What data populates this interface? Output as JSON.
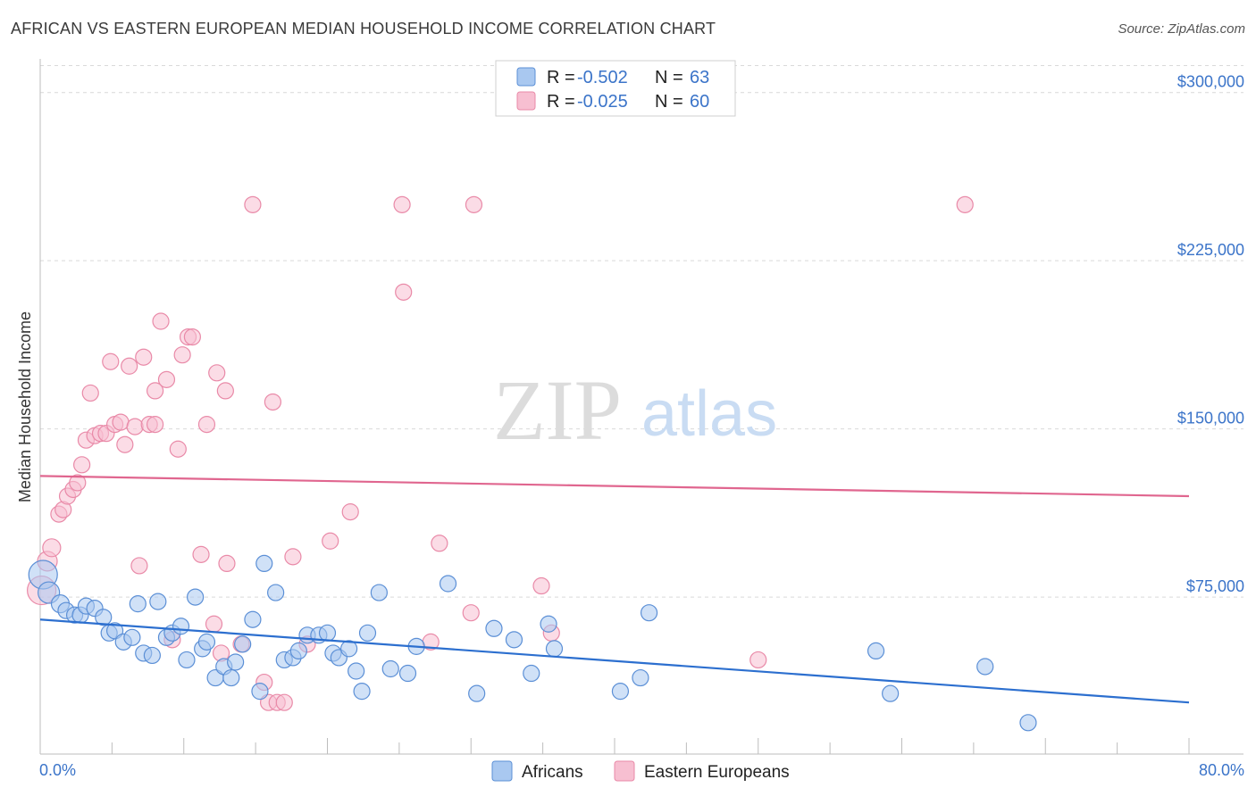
{
  "title": "AFRICAN VS EASTERN EUROPEAN MEDIAN HOUSEHOLD INCOME CORRELATION CHART",
  "source": "Source: ZipAtlas.com",
  "watermark": {
    "zip": "ZIP",
    "atlas": "atlas"
  },
  "colors": {
    "africans_fill": "#a9c8f0",
    "africans_stroke": "#5b8fd6",
    "africans_line": "#2c6fcf",
    "eastern_fill": "#f7bfd1",
    "eastern_stroke": "#e98aa8",
    "eastern_line": "#e0668f",
    "grid": "#d9d9d9",
    "axis_text": "#3b74c9"
  },
  "legend": {
    "africans": {
      "r_label": "R =",
      "r_value": "-0.502",
      "n_label": "N =",
      "n_value": "63"
    },
    "eastern": {
      "r_label": "R =",
      "r_value": "-0.025",
      "n_label": "N =",
      "n_value": "60"
    }
  },
  "chart_data": {
    "type": "scatter",
    "xlabel": "",
    "ylabel": "Median Household Income",
    "xlim": [
      0,
      80
    ],
    "ylim": [
      5000,
      315000
    ],
    "x_tick_labels": {
      "min": "0.0%",
      "max": "80.0%"
    },
    "y_ticks": [
      {
        "value": 75000,
        "label": "$75,000"
      },
      {
        "value": 150000,
        "label": "$150,000"
      },
      {
        "value": 225000,
        "label": "$225,000"
      },
      {
        "value": 300000,
        "label": "$300,000"
      }
    ],
    "grid": true,
    "legend_position": "top-center",
    "series": [
      {
        "name": "Africans",
        "trend": {
          "x": [
            0,
            80
          ],
          "y": [
            65000,
            28000
          ]
        },
        "points": [
          [
            0.2,
            85000,
            16
          ],
          [
            0.6,
            77000,
            12
          ],
          [
            1.4,
            72000,
            10
          ],
          [
            1.8,
            69000,
            9
          ],
          [
            2.4,
            67000,
            9
          ],
          [
            2.8,
            67000,
            9
          ],
          [
            3.2,
            71000,
            9
          ],
          [
            3.8,
            70000,
            9
          ],
          [
            4.4,
            66000,
            9
          ],
          [
            4.8,
            59000,
            9
          ],
          [
            5.2,
            60000,
            9
          ],
          [
            5.8,
            55000,
            9
          ],
          [
            6.4,
            57000,
            9
          ],
          [
            6.8,
            72000,
            9
          ],
          [
            7.2,
            50000,
            9
          ],
          [
            7.8,
            49000,
            9
          ],
          [
            8.2,
            73000,
            9
          ],
          [
            8.8,
            57000,
            9
          ],
          [
            9.2,
            59000,
            9
          ],
          [
            9.8,
            62000,
            9
          ],
          [
            10.2,
            47000,
            9
          ],
          [
            10.8,
            75000,
            9
          ],
          [
            11.3,
            52000,
            9
          ],
          [
            11.6,
            55000,
            9
          ],
          [
            12.2,
            39000,
            9
          ],
          [
            12.8,
            44000,
            9
          ],
          [
            13.3,
            39000,
            9
          ],
          [
            13.6,
            46000,
            9
          ],
          [
            14.1,
            54000,
            9
          ],
          [
            14.8,
            65000,
            9
          ],
          [
            15.3,
            33000,
            9
          ],
          [
            15.6,
            90000,
            9
          ],
          [
            16.4,
            77000,
            9
          ],
          [
            17.0,
            47000,
            9
          ],
          [
            17.6,
            48000,
            9
          ],
          [
            18.0,
            51000,
            9
          ],
          [
            18.6,
            58000,
            9
          ],
          [
            19.4,
            58000,
            9
          ],
          [
            20.0,
            59000,
            9
          ],
          [
            20.4,
            50000,
            9
          ],
          [
            20.8,
            48000,
            9
          ],
          [
            21.5,
            52000,
            9
          ],
          [
            22.0,
            42000,
            9
          ],
          [
            22.4,
            33000,
            9
          ],
          [
            22.8,
            59000,
            9
          ],
          [
            23.6,
            77000,
            9
          ],
          [
            24.4,
            43000,
            9
          ],
          [
            25.6,
            41000,
            9
          ],
          [
            26.2,
            53000,
            9
          ],
          [
            28.4,
            81000,
            9
          ],
          [
            30.4,
            32000,
            9
          ],
          [
            31.6,
            61000,
            9
          ],
          [
            33.0,
            56000,
            9
          ],
          [
            34.2,
            41000,
            9
          ],
          [
            35.4,
            63000,
            9
          ],
          [
            35.8,
            52000,
            9
          ],
          [
            40.4,
            33000,
            9
          ],
          [
            41.8,
            39000,
            9
          ],
          [
            42.4,
            68000,
            9
          ],
          [
            58.2,
            51000,
            9
          ],
          [
            59.2,
            32000,
            9
          ],
          [
            65.8,
            44000,
            9
          ],
          [
            68.8,
            19000,
            9
          ]
        ]
      },
      {
        "name": "Eastern Europeans",
        "trend": {
          "x": [
            0,
            80
          ],
          "y": [
            129000,
            120000
          ]
        },
        "points": [
          [
            0.1,
            78000,
            16
          ],
          [
            0.5,
            91000,
            11
          ],
          [
            0.8,
            97000,
            10
          ],
          [
            1.3,
            112000,
            9
          ],
          [
            1.6,
            114000,
            9
          ],
          [
            1.9,
            120000,
            9
          ],
          [
            2.3,
            123000,
            9
          ],
          [
            2.6,
            126000,
            9
          ],
          [
            2.9,
            134000,
            9
          ],
          [
            3.2,
            145000,
            9
          ],
          [
            3.5,
            166000,
            9
          ],
          [
            3.8,
            147000,
            9
          ],
          [
            4.2,
            148000,
            9
          ],
          [
            4.6,
            148000,
            9
          ],
          [
            4.9,
            180000,
            9
          ],
          [
            5.2,
            152000,
            9
          ],
          [
            5.6,
            153000,
            9
          ],
          [
            5.9,
            143000,
            9
          ],
          [
            6.2,
            178000,
            9
          ],
          [
            6.6,
            151000,
            9
          ],
          [
            6.9,
            89000,
            9
          ],
          [
            7.2,
            182000,
            9
          ],
          [
            7.6,
            152000,
            9
          ],
          [
            8.0,
            152000,
            9
          ],
          [
            8.0,
            167000,
            9
          ],
          [
            8.4,
            198000,
            9
          ],
          [
            8.8,
            172000,
            9
          ],
          [
            9.2,
            56000,
            9
          ],
          [
            9.6,
            141000,
            9
          ],
          [
            9.9,
            183000,
            9
          ],
          [
            10.3,
            191000,
            9
          ],
          [
            10.6,
            191000,
            9
          ],
          [
            11.2,
            94000,
            9
          ],
          [
            11.6,
            152000,
            9
          ],
          [
            12.1,
            63000,
            9
          ],
          [
            12.3,
            175000,
            9
          ],
          [
            12.6,
            50000,
            9
          ],
          [
            12.9,
            167000,
            9
          ],
          [
            13.0,
            90000,
            9
          ],
          [
            14.0,
            54000,
            9
          ],
          [
            14.8,
            250000,
            9
          ],
          [
            15.6,
            37000,
            9
          ],
          [
            15.9,
            28000,
            9
          ],
          [
            16.2,
            162000,
            9
          ],
          [
            16.5,
            28000,
            9
          ],
          [
            17.0,
            28000,
            9
          ],
          [
            17.6,
            93000,
            9
          ],
          [
            18.6,
            54000,
            9
          ],
          [
            20.2,
            100000,
            9
          ],
          [
            21.6,
            113000,
            9
          ],
          [
            25.2,
            250000,
            9
          ],
          [
            25.3,
            211000,
            9
          ],
          [
            27.2,
            55000,
            9
          ],
          [
            27.8,
            99000,
            9
          ],
          [
            30.2,
            250000,
            9
          ],
          [
            34.9,
            80000,
            9
          ],
          [
            35.6,
            59000,
            9
          ],
          [
            50.0,
            47000,
            9
          ],
          [
            64.4,
            250000,
            9
          ],
          [
            30.0,
            68000,
            9
          ]
        ]
      }
    ]
  }
}
